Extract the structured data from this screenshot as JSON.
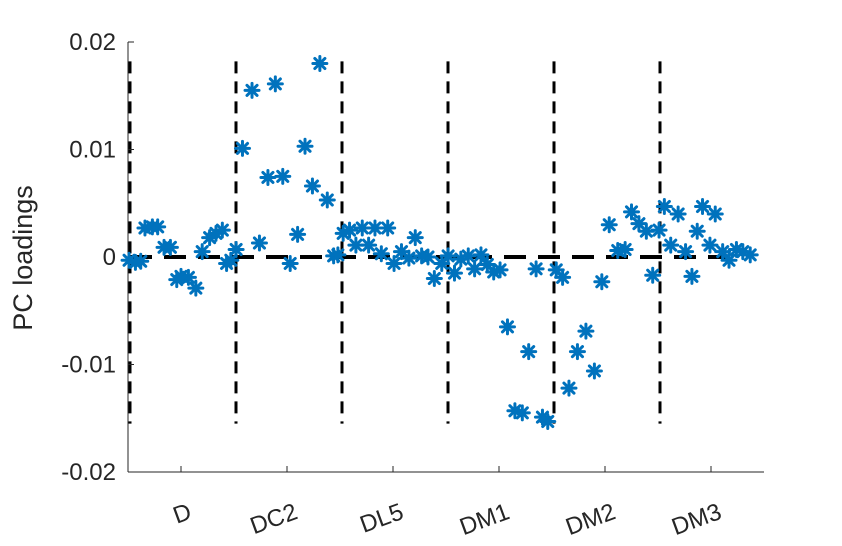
{
  "chart_data": {
    "type": "scatter",
    "title": "",
    "xlabel": "",
    "ylabel": "PC loadings",
    "ylim": [
      -0.02,
      0.02
    ],
    "yticks": [
      0.02,
      0.01,
      0,
      -0.01,
      -0.02
    ],
    "ytick_labels": [
      "0.02",
      "0.01",
      "0",
      "-0.01",
      "-0.02"
    ],
    "xlim": [
      0,
      60
    ],
    "categories": [
      "D",
      "DC2",
      "DL5",
      "DM1",
      "DM2",
      "DM3"
    ],
    "category_centers": [
      5,
      15,
      25,
      35,
      45,
      55
    ],
    "group_dividers": [
      0,
      10,
      20,
      30,
      40,
      50
    ],
    "divider_range": [
      -0.0155,
      0.0182
    ],
    "zero_line": 0,
    "marker": "asterisk",
    "marker_color": "#0072BD",
    "grid": false,
    "legend": "none",
    "series": [
      {
        "x": [
          0.1,
          0.7,
          1.2,
          1.6,
          2.3,
          2.8,
          3.4,
          4.0,
          4.6,
          5.0,
          5.7,
          6.4,
          7.0,
          7.7,
          8.3,
          8.9,
          9.3,
          9.7,
          10.2,
          10.8,
          11.7,
          12.4,
          13.2,
          13.9,
          14.6,
          15.3,
          16.0,
          16.7,
          17.4,
          18.1,
          18.8,
          19.4,
          19.8,
          20.3,
          20.9,
          21.5,
          22.1,
          22.7,
          23.3,
          23.9,
          24.5,
          25.1,
          25.8,
          26.5,
          27.1,
          27.7,
          28.3,
          28.9,
          29.6,
          30.2,
          30.8,
          31.4,
          32.1,
          32.7,
          33.3,
          33.9,
          34.5,
          35.1,
          35.8,
          36.5,
          37.2,
          37.8,
          38.5,
          39.1,
          39.6,
          40.4,
          41.0,
          41.6,
          42.4,
          43.2,
          44.0,
          44.7,
          45.4,
          46.2,
          46.9,
          47.5,
          48.2,
          48.9,
          49.5,
          50.1,
          50.6,
          51.2,
          51.9,
          52.6,
          53.2,
          53.7,
          54.2,
          54.9,
          55.4,
          56.1,
          56.7,
          57.4,
          58.0,
          58.7
        ],
        "values": [
          -0.0003,
          -0.0005,
          -0.0004,
          0.0027,
          0.0028,
          0.0028,
          0.0009,
          0.0009,
          -0.0021,
          -0.0018,
          -0.0019,
          -0.0029,
          0.0005,
          0.0018,
          0.0022,
          0.0025,
          -0.0006,
          -0.0003,
          0.0007,
          0.0101,
          0.0155,
          0.0013,
          0.0074,
          0.0161,
          0.0075,
          -0.0006,
          0.0021,
          0.0103,
          0.0066,
          0.018,
          0.0053,
          0.0001,
          0.0002,
          0.0022,
          0.0025,
          0.0011,
          0.0027,
          0.0011,
          0.0027,
          0.0003,
          0.0027,
          -0.0006,
          0.0005,
          -0.0001,
          0.0018,
          0.0001,
          0.0,
          -0.002,
          -0.0006,
          0.0001,
          -0.0015,
          -0.0002,
          0.0001,
          -0.0011,
          0.0002,
          -0.0007,
          -0.0014,
          -0.0012,
          -0.0065,
          -0.0143,
          -0.0145,
          -0.0088,
          -0.0011,
          -0.0149,
          -0.0153,
          -0.0012,
          -0.0019,
          -0.0122,
          -0.0088,
          -0.0069,
          -0.0106,
          -0.0023,
          0.003,
          0.0006,
          0.0007,
          0.0042,
          0.0031,
          0.0024,
          -0.0017,
          0.0025,
          0.0047,
          0.0011,
          0.004,
          0.0005,
          -0.0018,
          0.0024,
          0.0047,
          0.0011,
          0.004,
          0.0005,
          -0.0003,
          0.0007,
          0.0005,
          0.0002
        ]
      }
    ]
  }
}
